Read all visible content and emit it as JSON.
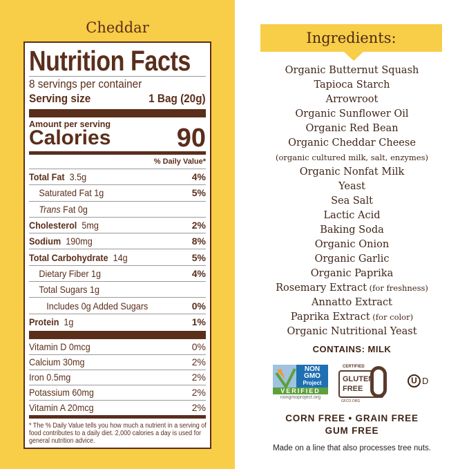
{
  "flavor": "Cheddar",
  "label": {
    "title": "Nutrition Facts",
    "servings": "8 servings per container",
    "serving_size_label": "Serving size",
    "serving_size_value": "1 Bag (20g)",
    "amount_per_serving": "Amount per serving",
    "calories_label": "Calories",
    "calories_value": "90",
    "dv_header": "% Daily Value*",
    "nutrients": [
      {
        "name": "Total Fat",
        "amount": "3.5g",
        "dv": "4%",
        "bold": true,
        "indent": 0
      },
      {
        "name": "Saturated Fat 1g",
        "amount": "",
        "dv": "5%",
        "bold": false,
        "indent": 1
      },
      {
        "name": "Trans Fat 0g",
        "amount": "",
        "dv": "",
        "bold": false,
        "indent": 1,
        "italic_prefix": "Trans"
      },
      {
        "name": "Cholesterol",
        "amount": "5mg",
        "dv": "2%",
        "bold": true,
        "indent": 0
      },
      {
        "name": "Sodium",
        "amount": "190mg",
        "dv": "8%",
        "bold": true,
        "indent": 0
      },
      {
        "name": "Total Carbohydrate",
        "amount": "14g",
        "dv": "5%",
        "bold": true,
        "indent": 0
      },
      {
        "name": "Dietary Fiber 1g",
        "amount": "",
        "dv": "4%",
        "bold": false,
        "indent": 1
      },
      {
        "name": "Total Sugars 1g",
        "amount": "",
        "dv": "",
        "bold": false,
        "indent": 1
      },
      {
        "name": "Includes 0g Added Sugars",
        "amount": "",
        "dv": "0%",
        "bold": false,
        "indent": 2
      },
      {
        "name": "Protein",
        "amount": "1g",
        "dv": "1%",
        "bold": true,
        "indent": 0
      }
    ],
    "vitamins": [
      {
        "name": "Vitamin D 0mcg",
        "dv": "0%"
      },
      {
        "name": "Calcium 30mg",
        "dv": "2%"
      },
      {
        "name": "Iron 0.5mg",
        "dv": "2%"
      },
      {
        "name": "Potassium 60mg",
        "dv": "2%"
      },
      {
        "name": "Vitamin A 20mcg",
        "dv": "2%"
      }
    ],
    "footnote": "* The % Daily Value tells you how much a nutrient in a serving of food contributes to a daily diet. 2,000 calories a day is used for general nutrition advice."
  },
  "ingredients": {
    "title": "Ingredients:",
    "items": [
      {
        "text": "Organic Butternut Squash",
        "note": ""
      },
      {
        "text": "Tapioca Starch",
        "note": ""
      },
      {
        "text": "Arrowroot",
        "note": ""
      },
      {
        "text": "Organic Sunflower Oil",
        "note": ""
      },
      {
        "text": "Organic Red Bean",
        "note": ""
      },
      {
        "text": "Organic Cheddar Cheese",
        "note": ""
      },
      {
        "text": "",
        "note": "(organic cultured milk, salt, enzymes)"
      },
      {
        "text": "Organic Nonfat Milk",
        "note": ""
      },
      {
        "text": "Yeast",
        "note": ""
      },
      {
        "text": "Sea Salt",
        "note": ""
      },
      {
        "text": "Lactic Acid",
        "note": ""
      },
      {
        "text": "Baking Soda",
        "note": ""
      },
      {
        "text": "Organic Onion",
        "note": ""
      },
      {
        "text": "Organic Garlic",
        "note": ""
      },
      {
        "text": "Organic Paprika",
        "note": ""
      },
      {
        "text": "Rosemary Extract",
        "note": " (for freshness)"
      },
      {
        "text": "Annatto Extract",
        "note": ""
      },
      {
        "text": "Paprika Extract",
        "note": " (for color)"
      },
      {
        "text": "Organic Nutritional Yeast",
        "note": ""
      }
    ],
    "contains": "CONTAINS: MILK"
  },
  "logos": {
    "nongmo": {
      "line1": "NON",
      "line2": "GMO",
      "line3": "Project",
      "verified": "VERIFIED",
      "url": "nongmoproject.org"
    },
    "gluten": {
      "certified": "CERTIFIED",
      "line1": "GLUTEN",
      "line2": "FREE",
      "org": "GFCO.ORG"
    },
    "kosher": {
      "mark": "U",
      "suffix": "D"
    }
  },
  "claims": {
    "line1": "CORN FREE • GRAIN FREE",
    "line2": "GUM FREE"
  },
  "allergen_note": "Made on a line that also processes tree nuts.",
  "colors": {
    "yellow": "#f8cd47",
    "brown": "#5a2e1b",
    "nongmo_blue": "#1f6fb3",
    "nongmo_green": "#5da03c"
  }
}
